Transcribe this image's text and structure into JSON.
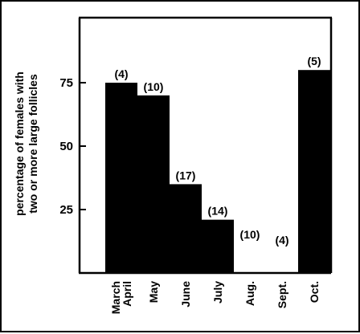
{
  "chart_data": {
    "type": "bar",
    "title": "",
    "xlabel": "",
    "ylabel_lines": [
      "percentage of females with",
      "two or more large follicles"
    ],
    "categories": [
      {
        "lines": [
          "March",
          "April"
        ]
      },
      {
        "lines": [
          "May"
        ]
      },
      {
        "lines": [
          "June"
        ]
      },
      {
        "lines": [
          "July"
        ]
      },
      {
        "lines": [
          "Aug."
        ]
      },
      {
        "lines": [
          "Sept."
        ]
      },
      {
        "lines": [
          "Oct."
        ]
      }
    ],
    "values": [
      75,
      70,
      35,
      21,
      0,
      0,
      80
    ],
    "sample_sizes": [
      "(4)",
      "(10)",
      "(17)",
      "(14)",
      "(10)",
      "(4)",
      "(5)"
    ],
    "yticks": [
      "75",
      "50",
      "25"
    ],
    "ytick_values": [
      75,
      50,
      25
    ],
    "ylim": [
      0,
      100
    ],
    "bar_color": "#000000",
    "grid": false,
    "legend": "none"
  }
}
